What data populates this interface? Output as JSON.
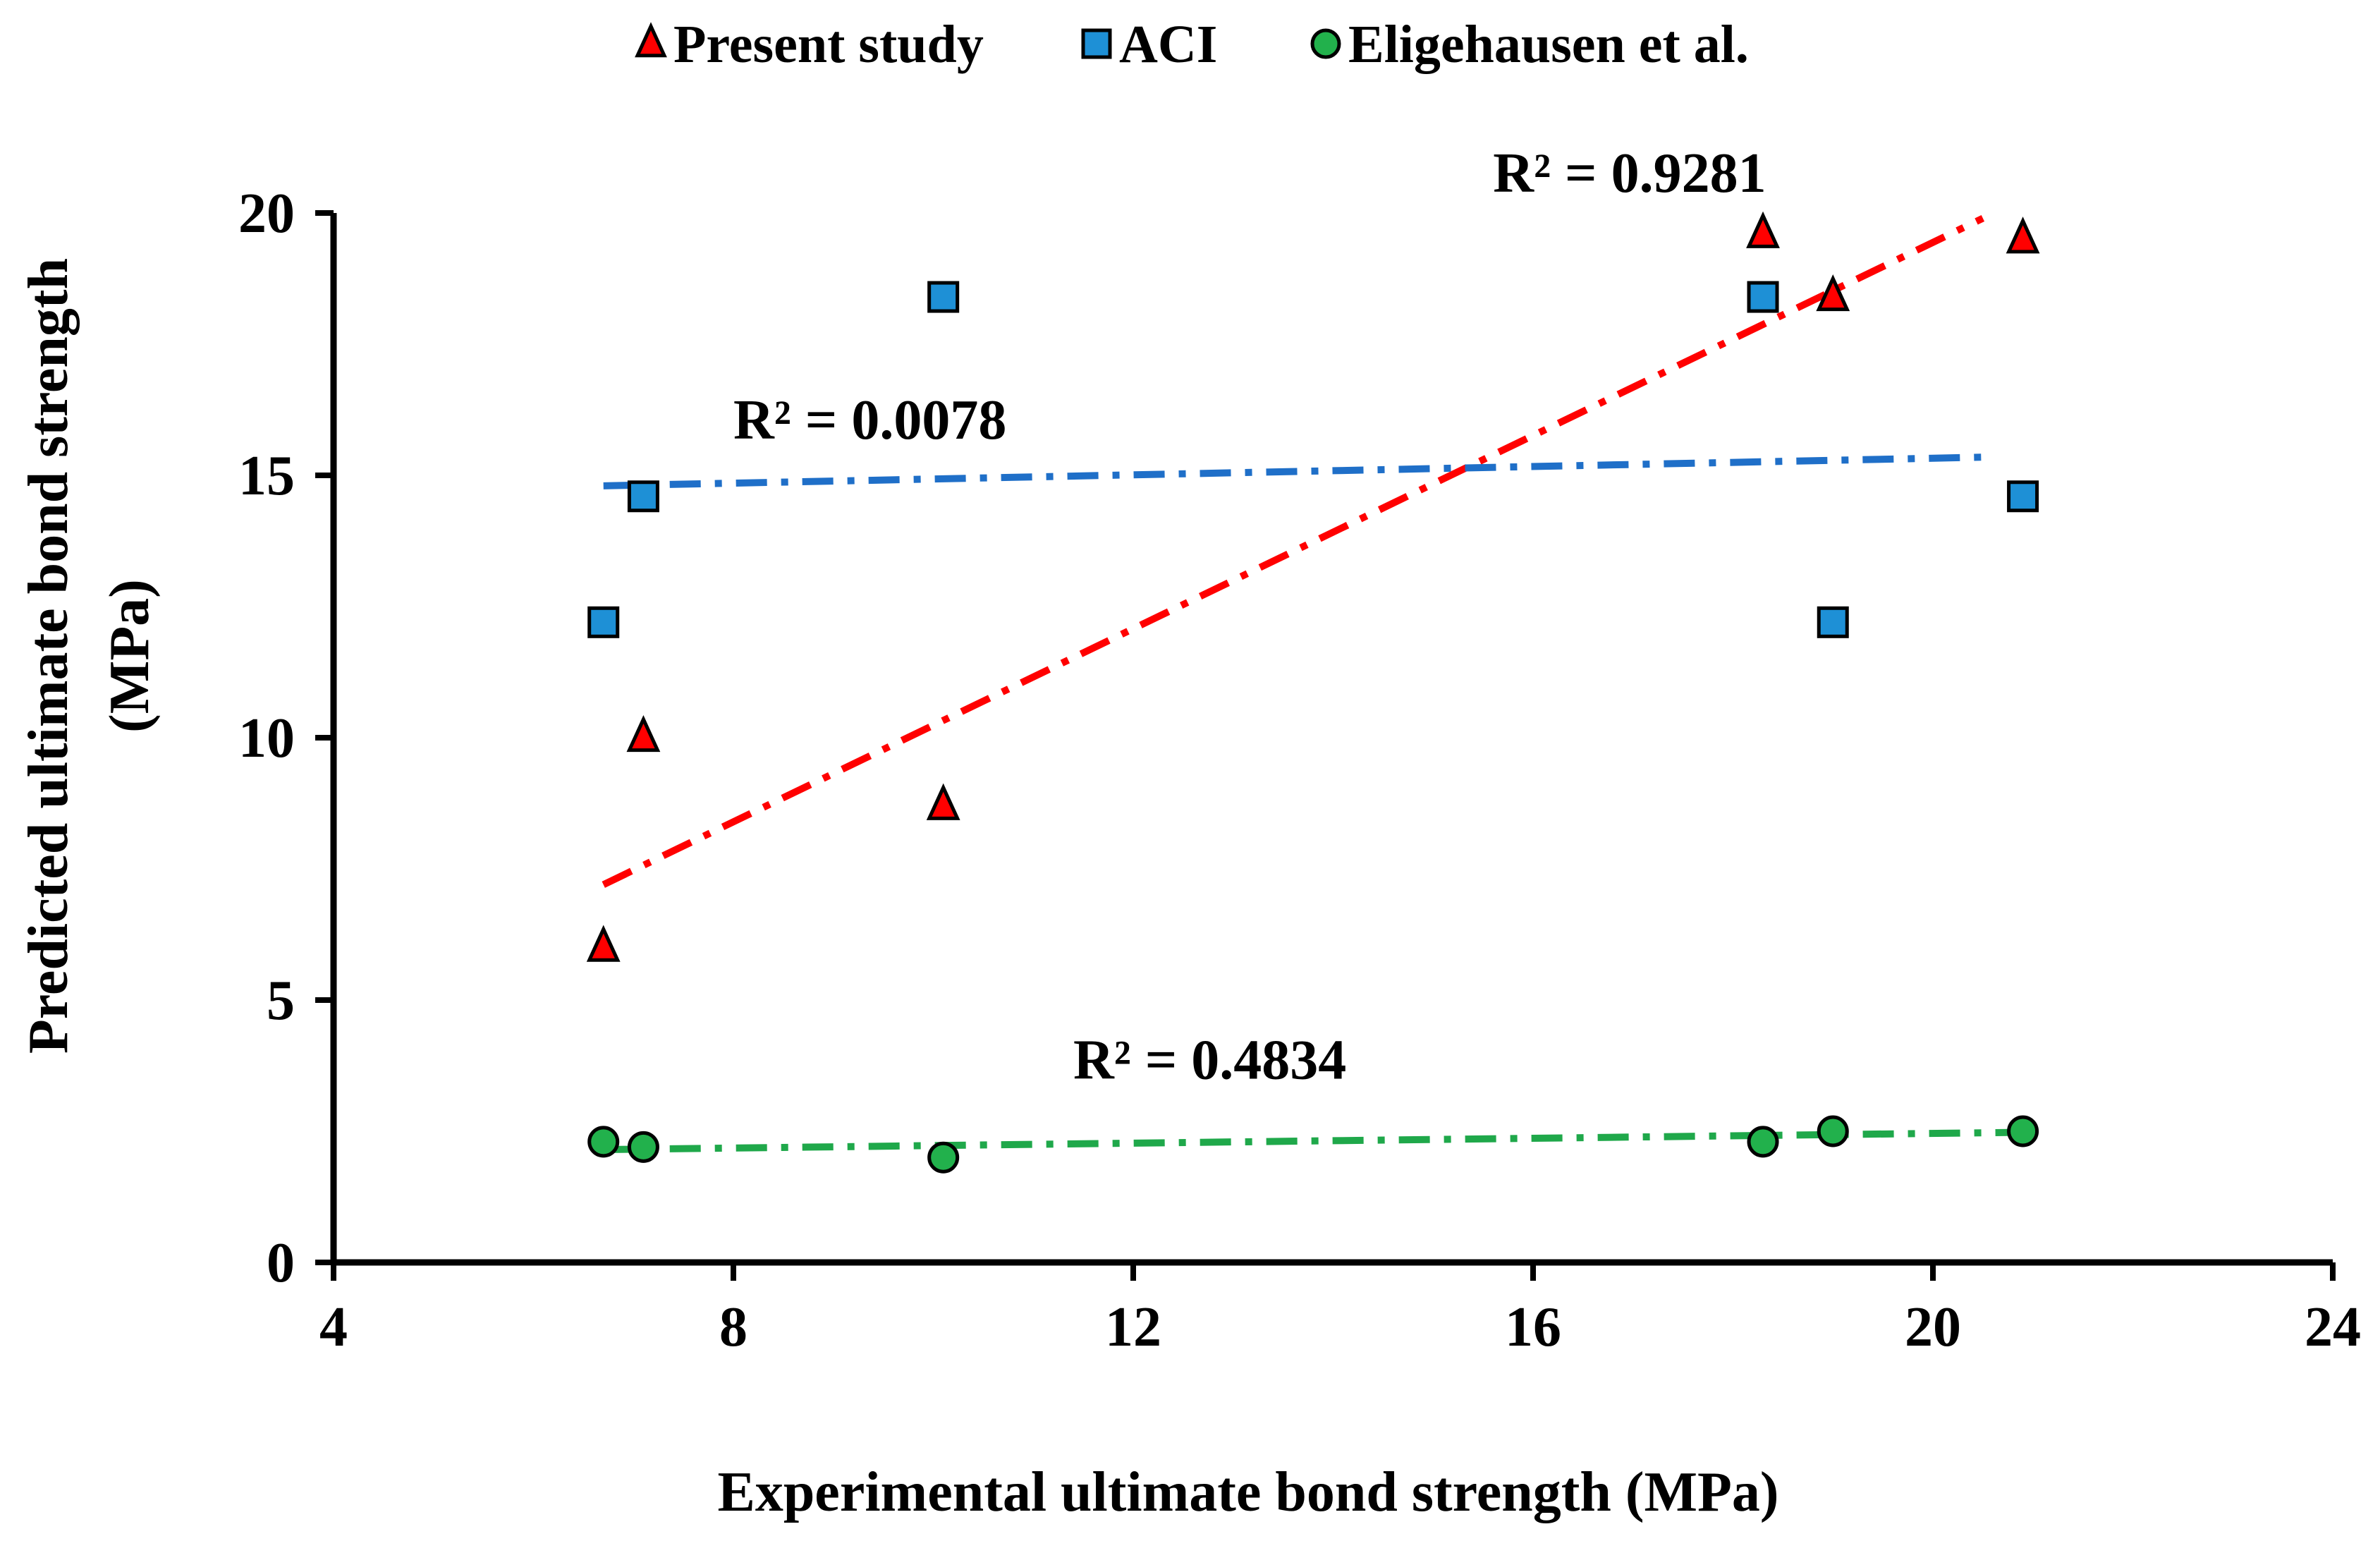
{
  "chart_data": {
    "type": "scatter",
    "title": "",
    "xlabel": "Experimental ultimate bond strength (MPa)",
    "ylabel_lines": [
      "Predicted ultimate bond strength",
      "(MPa)"
    ],
    "xlim": [
      4,
      24
    ],
    "ylim": [
      0,
      20
    ],
    "x_ticks": [
      4,
      8,
      12,
      16,
      20,
      24
    ],
    "y_ticks": [
      0,
      5,
      10,
      15,
      20
    ],
    "x_tick_labels": [
      "4",
      "8",
      "12",
      "16",
      "20",
      "24"
    ],
    "y_tick_labels": [
      "0",
      "5",
      "10",
      "15",
      "20"
    ],
    "legend_position": "top-center",
    "grid": false,
    "series": [
      {
        "name": "Present study",
        "marker": "triangle",
        "color": "#ff0000",
        "trend_color": "#ff0000",
        "x": [
          6.7,
          7.1,
          10.1,
          18.3,
          19.0,
          20.9
        ],
        "y": [
          6.0,
          10.0,
          8.7,
          19.6,
          18.4,
          19.5
        ],
        "trendline": {
          "x": [
            6.7,
            20.5
          ],
          "y": [
            7.2,
            19.9
          ]
        },
        "r2_label": "R² = 0.9281",
        "r2_anchor": {
          "x": 15.6,
          "y": 20.4
        }
      },
      {
        "name": "ACI",
        "marker": "square",
        "color": "#1e90d6",
        "trend_color": "#1f6fc8",
        "x": [
          6.7,
          7.1,
          10.1,
          18.3,
          19.0,
          20.9
        ],
        "y": [
          12.2,
          14.6,
          18.4,
          18.4,
          12.2,
          14.6
        ],
        "trendline": {
          "x": [
            6.7,
            20.6
          ],
          "y": [
            14.8,
            15.35
          ]
        },
        "r2_label": "R² = 0.0078",
        "r2_anchor": {
          "x": 8.0,
          "y": 15.7
        }
      },
      {
        "name": "Eligehausen et al.",
        "marker": "circle",
        "color": "#22b14c",
        "trend_color": "#1fa84a",
        "x": [
          6.7,
          7.1,
          10.1,
          18.3,
          19.0,
          20.9
        ],
        "y": [
          2.3,
          2.2,
          2.0,
          2.3,
          2.5,
          2.5
        ],
        "trendline": {
          "x": [
            6.7,
            20.9
          ],
          "y": [
            2.15,
            2.48
          ]
        },
        "r2_label": "R² = 0.4834",
        "r2_anchor": {
          "x": 11.4,
          "y": 3.5
        }
      }
    ]
  }
}
